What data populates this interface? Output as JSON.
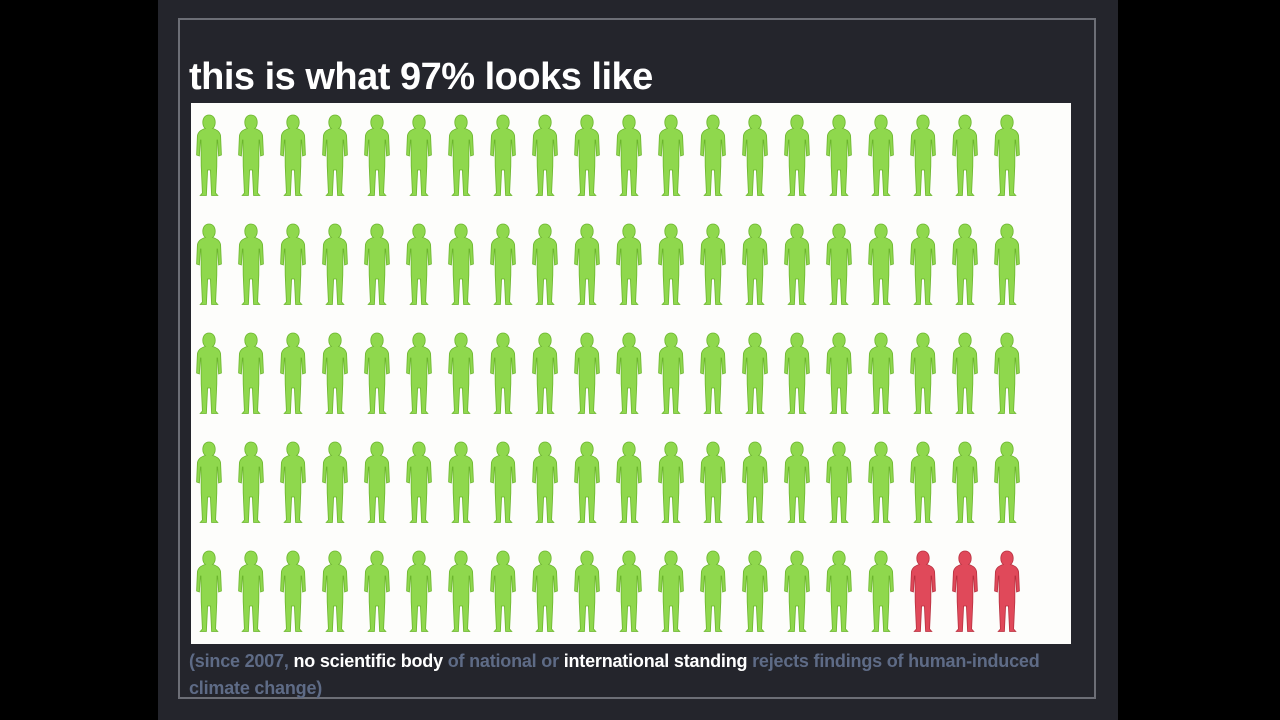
{
  "slide": {
    "title": "this is what 97% looks like",
    "caption": [
      {
        "text": "(since 2007, ",
        "highlight": false
      },
      {
        "text": "no scientific body",
        "highlight": true
      },
      {
        "text": " of national or ",
        "highlight": false
      },
      {
        "text": "international standing",
        "highlight": true
      },
      {
        "text": " rejects findings of human-induced climate change)",
        "highlight": false
      }
    ]
  },
  "colors": {
    "agree": "#8fd84d",
    "agree_outline": "#6bb52d",
    "reject": "#e0495a",
    "reject_outline": "#b8303f",
    "caption_text": "#5e6b86",
    "caption_highlight": "#ffffff"
  },
  "chart_data": {
    "type": "pictograph",
    "icon": "person-silhouette-icon",
    "rows": 5,
    "columns": 20,
    "total": 100,
    "agree_count": 97,
    "reject_count": 3
  }
}
